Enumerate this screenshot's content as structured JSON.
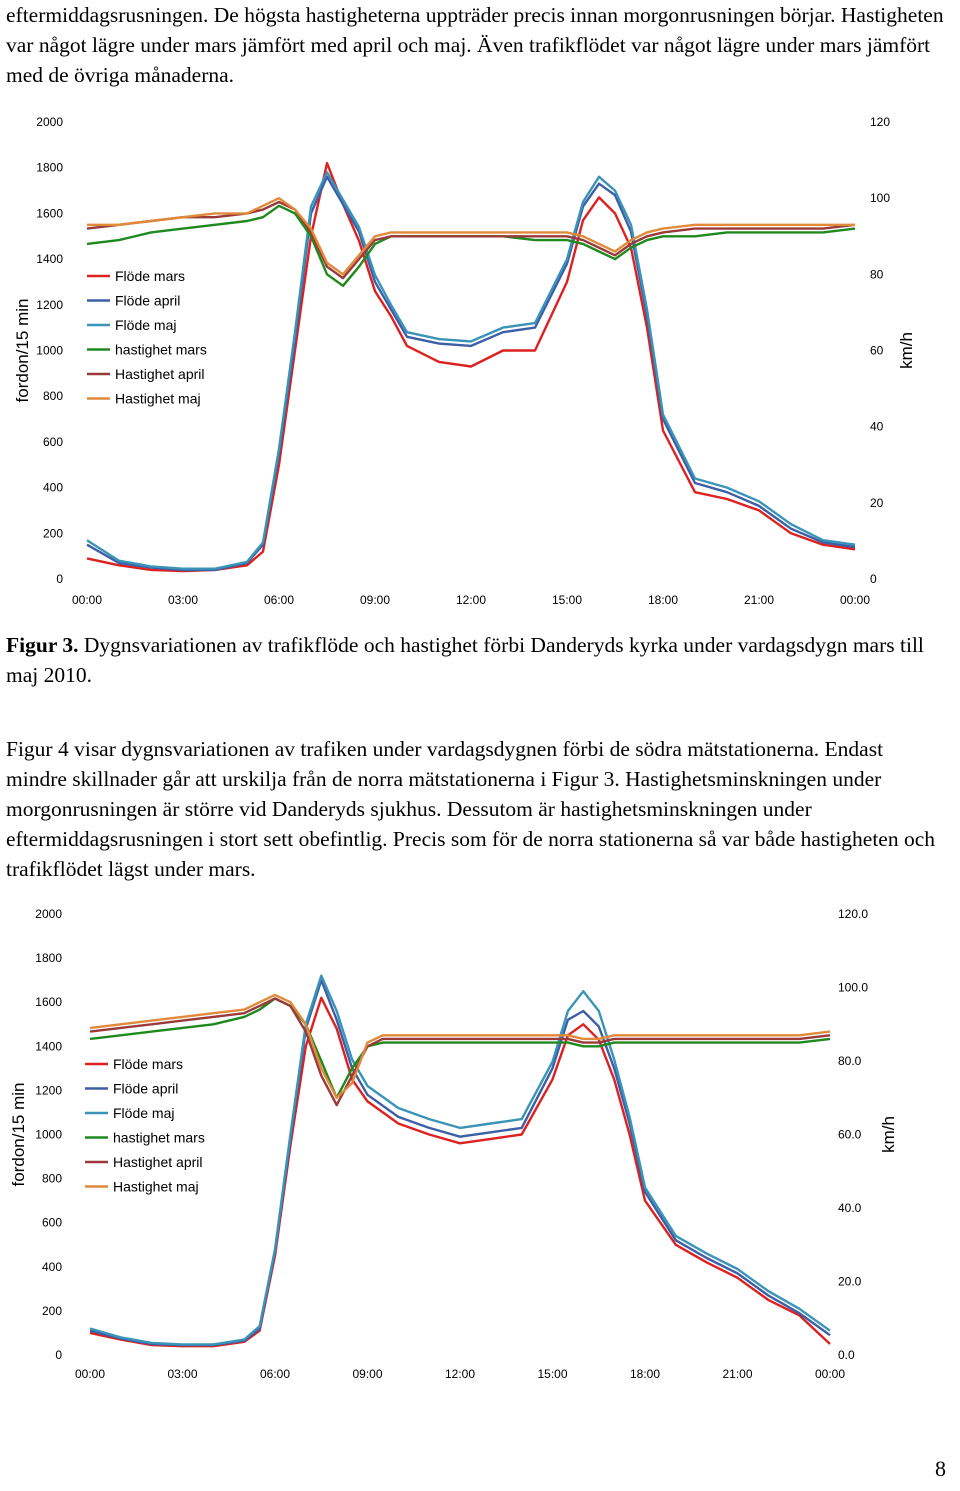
{
  "intro": {
    "text": "eftermiddagsrusningen. De högsta hastigheterna uppträder precis innan morgonrusningen börjar. Hastigheten var något lägre under mars jämfört med april och maj. Även trafikflödet var något lägre under mars jämfört med de övriga månaderna."
  },
  "caption": {
    "label": "Figur 3.",
    "text": " Dygnsvariationen av trafikflöde och hastighet förbi Danderyds kyrka under vardagsdygn mars till maj 2010."
  },
  "paragraph": {
    "text": "Figur 4 visar dygnsvariationen av trafiken under vardagsdygnen förbi de södra mätstationerna. Endast mindre skillnader går att urskilja från de norra mätstationerna i Figur 3. Hastighetsminskningen under morgonrusningen är större vid Danderyds sjukhus. Dessutom är hastighetsminskningen under eftermiddagsrusningen i stort sett obefintlig. Precis som för de norra stationerna så var både hastigheten och trafikflödet lägst under mars."
  },
  "page_number": "8",
  "colors": {
    "flode_mars": "#dd2020",
    "flode_april": "#3d5fa6",
    "flode_maj": "#3a94b8",
    "hast_mars": "#1e8a1e",
    "hast_april": "#9a3a3a",
    "hast_maj": "#e08a3a"
  },
  "chart_data": [
    {
      "type": "line",
      "title": "",
      "ylabel": "fordon/15 min",
      "y2label": "km/h",
      "ylim": [
        0,
        2000
      ],
      "y2lim": [
        0,
        120
      ],
      "y_ticks": [
        "0",
        "200",
        "400",
        "600",
        "800",
        "1000",
        "1200",
        "1400",
        "1600",
        "1800",
        "2000"
      ],
      "y2_ticks": [
        "0",
        "20",
        "40",
        "60",
        "80",
        "100",
        "120"
      ],
      "x_ticks": [
        "00:00",
        "03:00",
        "06:00",
        "09:00",
        "12:00",
        "15:00",
        "18:00",
        "21:00",
        "00:00"
      ],
      "x_hours": [
        0,
        1,
        2,
        3,
        4,
        5,
        5.5,
        6,
        6.5,
        7,
        7.5,
        8,
        8.5,
        9,
        9.5,
        10,
        11,
        12,
        13,
        14,
        15,
        15.5,
        16,
        16.5,
        17,
        17.5,
        18,
        19,
        20,
        21,
        22,
        23,
        24
      ],
      "legend_position": "upper-left",
      "series": [
        {
          "name": "Flöde mars",
          "axis": "left",
          "color_key": "flode_mars",
          "values": [
            90,
            60,
            40,
            35,
            40,
            60,
            120,
            500,
            1000,
            1500,
            1820,
            1640,
            1480,
            1260,
            1150,
            1020,
            950,
            930,
            1000,
            1000,
            1300,
            1570,
            1670,
            1600,
            1450,
            1100,
            650,
            380,
            350,
            300,
            200,
            150,
            130
          ]
        },
        {
          "name": "Flöde april",
          "axis": "left",
          "color_key": "flode_april",
          "values": [
            150,
            70,
            50,
            40,
            40,
            70,
            150,
            550,
            1050,
            1600,
            1760,
            1640,
            1520,
            1300,
            1180,
            1060,
            1030,
            1020,
            1080,
            1100,
            1380,
            1630,
            1730,
            1680,
            1520,
            1150,
            700,
            420,
            380,
            320,
            220,
            160,
            140
          ]
        },
        {
          "name": "Flöde maj",
          "axis": "left",
          "color_key": "flode_maj",
          "values": [
            170,
            80,
            55,
            45,
            45,
            75,
            160,
            570,
            1080,
            1630,
            1780,
            1660,
            1540,
            1330,
            1200,
            1080,
            1050,
            1040,
            1100,
            1120,
            1400,
            1650,
            1760,
            1700,
            1550,
            1180,
            720,
            440,
            400,
            340,
            240,
            170,
            150
          ]
        },
        {
          "name": "hastighet mars",
          "axis": "right",
          "color_key": "hast_mars",
          "values": [
            88,
            89,
            91,
            92,
            93,
            94,
            95,
            98,
            96,
            90,
            80,
            77,
            82,
            88,
            90,
            90,
            90,
            90,
            90,
            89,
            89,
            88,
            86,
            84,
            87,
            89,
            90,
            90,
            91,
            91,
            91,
            91,
            92
          ]
        },
        {
          "name": "Hastighet april",
          "axis": "right",
          "color_key": "hast_april",
          "values": [
            92,
            93,
            94,
            95,
            95,
            96,
            97,
            99,
            97,
            91,
            82,
            79,
            84,
            89,
            90,
            90,
            90,
            90,
            90,
            90,
            90,
            89,
            87,
            85,
            88,
            90,
            91,
            92,
            92,
            92,
            92,
            92,
            93
          ]
        },
        {
          "name": "Hastighet maj",
          "axis": "right",
          "color_key": "hast_maj",
          "values": [
            93,
            93,
            94,
            95,
            96,
            96,
            98,
            100,
            97,
            92,
            83,
            80,
            85,
            90,
            91,
            91,
            91,
            91,
            91,
            91,
            91,
            90,
            88,
            86,
            89,
            91,
            92,
            93,
            93,
            93,
            93,
            93,
            93
          ]
        }
      ]
    },
    {
      "type": "line",
      "title": "",
      "ylabel": "fordon/15 min",
      "y2label": "km/h",
      "ylim": [
        0,
        2000
      ],
      "y2lim": [
        0,
        120
      ],
      "y_ticks": [
        "0",
        "200",
        "400",
        "600",
        "800",
        "1000",
        "1200",
        "1400",
        "1600",
        "1800",
        "2000"
      ],
      "y2_ticks": [
        "0.0",
        "20.0",
        "40.0",
        "60.0",
        "80.0",
        "100.0",
        "120.0"
      ],
      "x_ticks": [
        "00:00",
        "03:00",
        "06:00",
        "09:00",
        "12:00",
        "15:00",
        "18:00",
        "21:00",
        "00:00"
      ],
      "x_hours": [
        0,
        1,
        2,
        3,
        4,
        5,
        5.5,
        6,
        6.5,
        7,
        7.5,
        8,
        8.5,
        9,
        9.5,
        10,
        11,
        12,
        13,
        14,
        15,
        15.5,
        16,
        16.5,
        17,
        17.5,
        18,
        19,
        20,
        21,
        22,
        23,
        24
      ],
      "legend_position": "upper-left",
      "series": [
        {
          "name": "Flöde mars",
          "axis": "left",
          "color_key": "flode_mars",
          "values": [
            100,
            70,
            45,
            40,
            40,
            60,
            110,
            450,
            950,
            1400,
            1620,
            1480,
            1250,
            1150,
            1100,
            1050,
            1000,
            960,
            980,
            1000,
            1250,
            1450,
            1500,
            1430,
            1250,
            1000,
            700,
            500,
            420,
            350,
            250,
            180,
            50
          ]
        },
        {
          "name": "Flöde april",
          "axis": "left",
          "color_key": "flode_april",
          "values": [
            110,
            75,
            50,
            45,
            45,
            65,
            120,
            470,
            980,
            1480,
            1700,
            1520,
            1300,
            1180,
            1130,
            1080,
            1030,
            990,
            1010,
            1030,
            1300,
            1520,
            1560,
            1490,
            1300,
            1050,
            740,
            520,
            440,
            370,
            270,
            190,
            90
          ]
        },
        {
          "name": "Flöde maj",
          "axis": "left",
          "color_key": "flode_maj",
          "values": [
            120,
            80,
            55,
            48,
            48,
            70,
            130,
            480,
            1000,
            1500,
            1720,
            1560,
            1340,
            1220,
            1170,
            1120,
            1070,
            1030,
            1050,
            1070,
            1330,
            1560,
            1650,
            1560,
            1340,
            1080,
            760,
            540,
            460,
            390,
            290,
            210,
            110
          ]
        },
        {
          "name": "hastighet mars",
          "axis": "right",
          "color_key": "hast_mars",
          "values": [
            86,
            87,
            88,
            89,
            90,
            92,
            94,
            97,
            95,
            90,
            80,
            70,
            78,
            84,
            85,
            85,
            85,
            85,
            85,
            85,
            85,
            85,
            84,
            84,
            85,
            85,
            85,
            85,
            85,
            85,
            85,
            85,
            86
          ]
        },
        {
          "name": "Hastighet april",
          "axis": "right",
          "color_key": "hast_april",
          "values": [
            88,
            89,
            90,
            91,
            92,
            93,
            95,
            97,
            95,
            88,
            76,
            68,
            76,
            84,
            86,
            86,
            86,
            86,
            86,
            86,
            86,
            86,
            85,
            85,
            86,
            86,
            86,
            86,
            86,
            86,
            86,
            86,
            87
          ]
        },
        {
          "name": "Hastighet maj",
          "axis": "right",
          "color_key": "hast_maj",
          "values": [
            89,
            90,
            91,
            92,
            93,
            94,
            96,
            98,
            96,
            90,
            78,
            70,
            74,
            85,
            87,
            87,
            87,
            87,
            87,
            87,
            87,
            87,
            86,
            86,
            87,
            87,
            87,
            87,
            87,
            87,
            87,
            87,
            88
          ]
        }
      ]
    }
  ]
}
